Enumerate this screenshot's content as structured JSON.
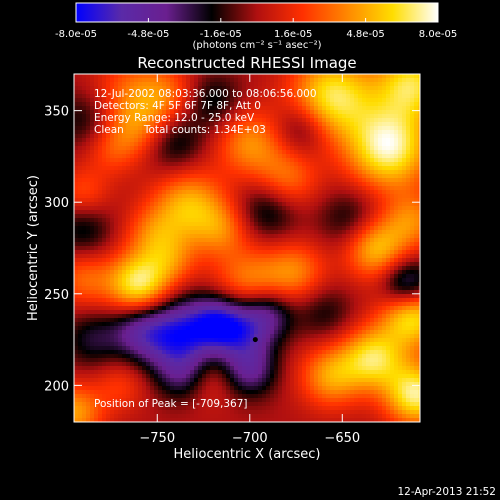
{
  "colorbar": {
    "tick_labels": [
      "-8.0e-05",
      "-4.8e-05",
      "-1.6e-05",
      "1.6e-05",
      "4.8e-05",
      "8.0e-05"
    ],
    "tick_values": [
      -8e-05,
      -4.8e-05,
      -1.6e-05,
      1.6e-05,
      4.8e-05,
      8e-05
    ],
    "range": [
      -8e-05,
      8e-05
    ],
    "units": "(photons cm⁻² s⁻¹ asec⁻²)",
    "colors": [
      "#0000ff",
      "#5a2aa8",
      "#6a1f8f",
      "#000000",
      "#b01010",
      "#ff3000",
      "#ff8800",
      "#ffdd00",
      "#ffffff"
    ]
  },
  "chart_data": {
    "type": "heatmap",
    "title": "Reconstructed RHESSI Image",
    "xlabel": "Heliocentric X (arcsec)",
    "ylabel": "Heliocentric Y (arcsec)",
    "xlim": [
      -795,
      -608
    ],
    "ylim": [
      180,
      370
    ],
    "x_ticks": [
      -750,
      -700,
      -650
    ],
    "x_tick_labels": [
      "−750",
      "−700",
      "−650"
    ],
    "y_ticks": [
      200,
      250,
      300,
      350
    ],
    "y_tick_labels": [
      "200",
      "250",
      "300",
      "350"
    ],
    "annotations": [
      "12-Jul-2002 08:03:36.000 to 08:06:56.000",
      "Detectors: 4F 5F 6F 7F 8F, Att 0",
      "Energy Range: 12.0 - 25.0 keV",
      "Clean      Total counts: 1.34E+03"
    ],
    "peak_label": "Position of Peak = [-709,367]",
    "peak": [
      -709,
      367
    ],
    "marker": [
      -697,
      225
    ],
    "blobs": [
      {
        "x": -765,
        "y": 362,
        "v": 2.5e-05,
        "r": 14
      },
      {
        "x": -760,
        "y": 340,
        "v": 3.5e-05,
        "r": 12
      },
      {
        "x": -745,
        "y": 358,
        "v": 3e-05,
        "r": 12
      },
      {
        "x": -700,
        "y": 332,
        "v": 4e-05,
        "r": 13
      },
      {
        "x": -680,
        "y": 312,
        "v": 3.5e-05,
        "r": 12
      },
      {
        "x": -655,
        "y": 358,
        "v": 6.5e-05,
        "r": 16
      },
      {
        "x": -625,
        "y": 330,
        "v": 7.5e-05,
        "r": 16
      },
      {
        "x": -612,
        "y": 365,
        "v": 6e-05,
        "r": 14
      },
      {
        "x": -733,
        "y": 298,
        "v": 5e-05,
        "r": 14
      },
      {
        "x": -715,
        "y": 285,
        "v": 3e-05,
        "r": 11
      },
      {
        "x": -752,
        "y": 282,
        "v": 3e-05,
        "r": 11
      },
      {
        "x": -775,
        "y": 328,
        "v": 2e-05,
        "r": 10
      },
      {
        "x": -790,
        "y": 305,
        "v": 2.5e-05,
        "r": 10
      },
      {
        "x": -790,
        "y": 258,
        "v": 3e-05,
        "r": 11
      },
      {
        "x": -760,
        "y": 255,
        "v": 7e-05,
        "r": 12
      },
      {
        "x": -742,
        "y": 268,
        "v": 2.5e-05,
        "r": 10
      },
      {
        "x": -700,
        "y": 255,
        "v": 4e-05,
        "r": 14
      },
      {
        "x": -675,
        "y": 262,
        "v": 3.5e-05,
        "r": 12
      },
      {
        "x": -632,
        "y": 275,
        "v": 5.5e-05,
        "r": 12
      },
      {
        "x": -612,
        "y": 290,
        "v": 3.5e-05,
        "r": 11
      },
      {
        "x": -612,
        "y": 238,
        "v": 6.5e-05,
        "r": 12
      },
      {
        "x": -633,
        "y": 215,
        "v": 6e-05,
        "r": 12
      },
      {
        "x": -610,
        "y": 195,
        "v": 7e-05,
        "r": 12
      },
      {
        "x": -656,
        "y": 205,
        "v": 4.5e-05,
        "r": 12
      },
      {
        "x": -725,
        "y": 205,
        "v": 2.5e-05,
        "r": 11
      },
      {
        "x": -795,
        "y": 185,
        "v": 4.5e-05,
        "r": 11
      },
      {
        "x": -770,
        "y": 200,
        "v": 2e-05,
        "r": 10
      },
      {
        "x": -760,
        "y": 230,
        "v": -4e-05,
        "r": 11
      },
      {
        "x": -738,
        "y": 227,
        "v": -7e-05,
        "r": 14
      },
      {
        "x": -718,
        "y": 235,
        "v": -4.5e-05,
        "r": 10
      },
      {
        "x": -705,
        "y": 230,
        "v": -5.5e-05,
        "r": 12
      },
      {
        "x": -690,
        "y": 240,
        "v": -4e-05,
        "r": 10
      },
      {
        "x": -735,
        "y": 205,
        "v": -3.5e-05,
        "r": 10
      },
      {
        "x": -700,
        "y": 208,
        "v": -4e-05,
        "r": 10
      },
      {
        "x": -615,
        "y": 255,
        "v": -5e-05,
        "r": 10
      },
      {
        "x": -742,
        "y": 333,
        "v": -3e-05,
        "r": 12
      },
      {
        "x": -720,
        "y": 355,
        "v": -2.5e-05,
        "r": 11
      },
      {
        "x": -690,
        "y": 296,
        "v": -3e-05,
        "r": 12
      },
      {
        "x": -645,
        "y": 290,
        "v": -2.5e-05,
        "r": 12
      },
      {
        "x": -660,
        "y": 240,
        "v": -2e-05,
        "r": 11
      },
      {
        "x": -790,
        "y": 285,
        "v": -2.5e-05,
        "r": 11
      },
      {
        "x": -790,
        "y": 345,
        "v": -2e-05,
        "r": 11
      },
      {
        "x": -785,
        "y": 225,
        "v": -2.5e-05,
        "r": 11
      },
      {
        "x": -672,
        "y": 340,
        "v": -2.5e-05,
        "r": 10
      }
    ]
  },
  "footer_timestamp": "12-Apr-2013 21:52"
}
